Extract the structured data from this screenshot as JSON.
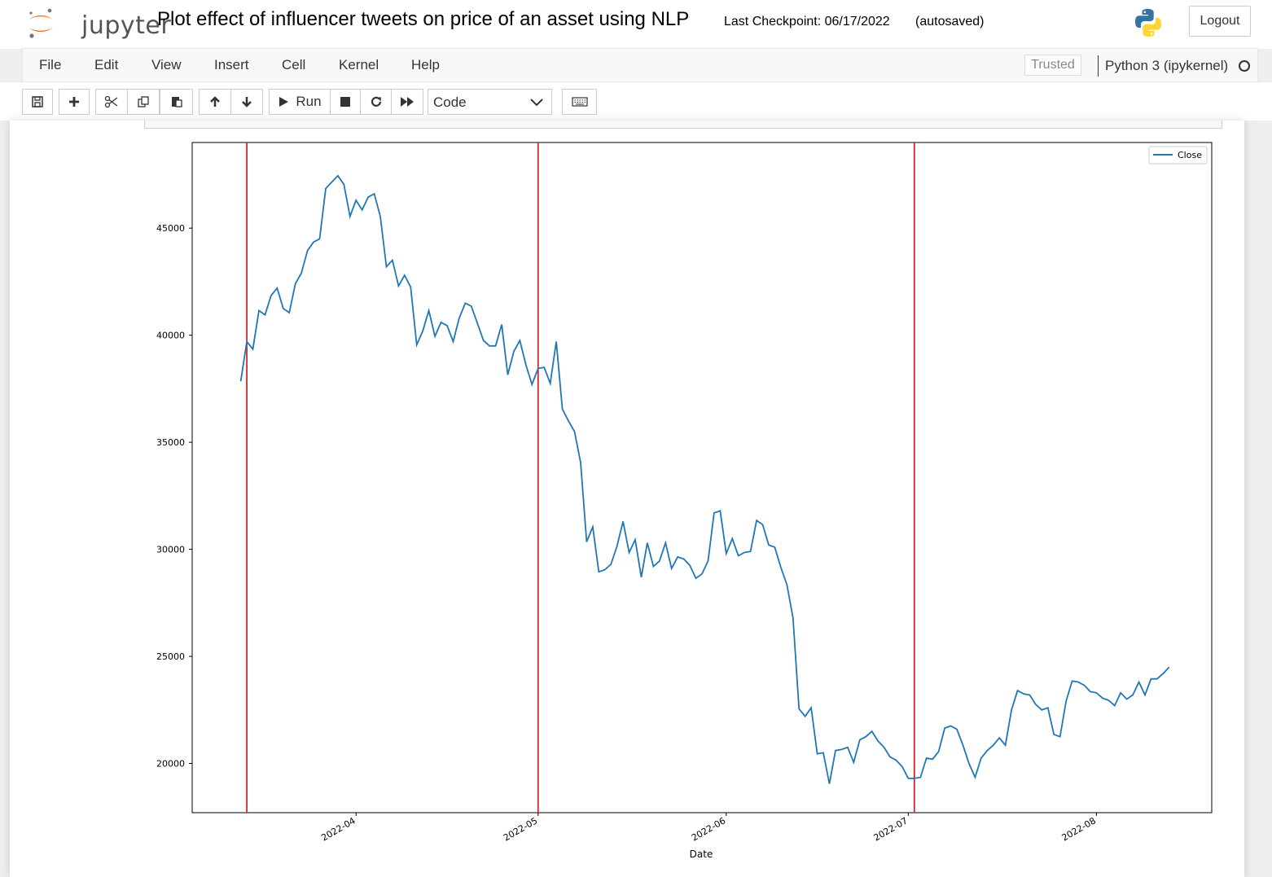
{
  "header": {
    "logo_text": "jupyter",
    "notebook_title": "Plot effect of influencer tweets on price of an asset using NLP",
    "checkpoint": "Last Checkpoint: 06/17/2022",
    "autosave": "(autosaved)",
    "logout_label": "Logout"
  },
  "menubar": {
    "items": [
      "File",
      "Edit",
      "View",
      "Insert",
      "Cell",
      "Kernel",
      "Help"
    ],
    "trusted_label": "Trusted",
    "kernel_name": "Python 3 (ipykernel)"
  },
  "toolbar": {
    "run_label": "Run",
    "cell_type": "Code"
  },
  "chart_data": {
    "type": "line",
    "title": "",
    "xlabel": "Date",
    "ylabel": "",
    "x_ticks": [
      "2022-04",
      "2022-05",
      "2022-06",
      "2022-07",
      "2022-08"
    ],
    "y_ticks": [
      20000,
      25000,
      30000,
      35000,
      40000,
      45000
    ],
    "ylim": [
      17700,
      49000
    ],
    "xlim": [
      "2022-03-05",
      "2022-08-20"
    ],
    "grid": false,
    "legend_position": "upper right",
    "series": [
      {
        "name": "Close",
        "color": "#1f77b4",
        "start_date": "2022-03-13",
        "values": [
          37850,
          39700,
          39350,
          41150,
          40950,
          41850,
          42200,
          41250,
          41050,
          42400,
          42900,
          43950,
          44350,
          44500,
          46850,
          47150,
          47450,
          47050,
          45550,
          46300,
          45850,
          46450,
          46600,
          45550,
          43200,
          43500,
          42300,
          42800,
          42250,
          39550,
          40200,
          41150,
          39950,
          40600,
          40450,
          39700,
          40800,
          41500,
          41350,
          40550,
          39750,
          39500,
          39500,
          40500,
          38150,
          39250,
          39750,
          38600,
          37700,
          38450,
          38500,
          37750,
          39700,
          36550,
          36000,
          35500,
          34050,
          30350,
          31050,
          28950,
          29050,
          29300,
          30150,
          31300,
          29850,
          30450,
          28700,
          30300,
          29200,
          29450,
          30300,
          29100,
          29650,
          29550,
          29250,
          28650,
          28850,
          29450,
          31700,
          31800,
          29800,
          30500,
          29700,
          29850,
          29900,
          31350,
          31150,
          30200,
          30100,
          29150,
          28350,
          26800,
          22550,
          22200,
          22600,
          20450,
          20500,
          19050,
          20600,
          20650,
          20750,
          20050,
          21100,
          21250,
          21500,
          21050,
          20750,
          20300,
          20150,
          19850,
          19300,
          19300,
          19350,
          20250,
          20200,
          20550,
          21650,
          21750,
          21600,
          20850,
          20000,
          19350,
          20250,
          20600,
          20850,
          21200,
          20850,
          22500,
          23400,
          23250,
          23200,
          22750,
          22500,
          22600,
          21350,
          21250,
          22900,
          23850,
          23800,
          23650,
          23350,
          23300,
          23050,
          22950,
          22700,
          23300,
          23000,
          23200,
          23800,
          23200,
          23950,
          23950,
          24200,
          24500
        ]
      }
    ],
    "vlines": {
      "color": "#d62728",
      "dates": [
        "2022-03-14",
        "2022-05-01",
        "2022-07-02"
      ]
    }
  }
}
